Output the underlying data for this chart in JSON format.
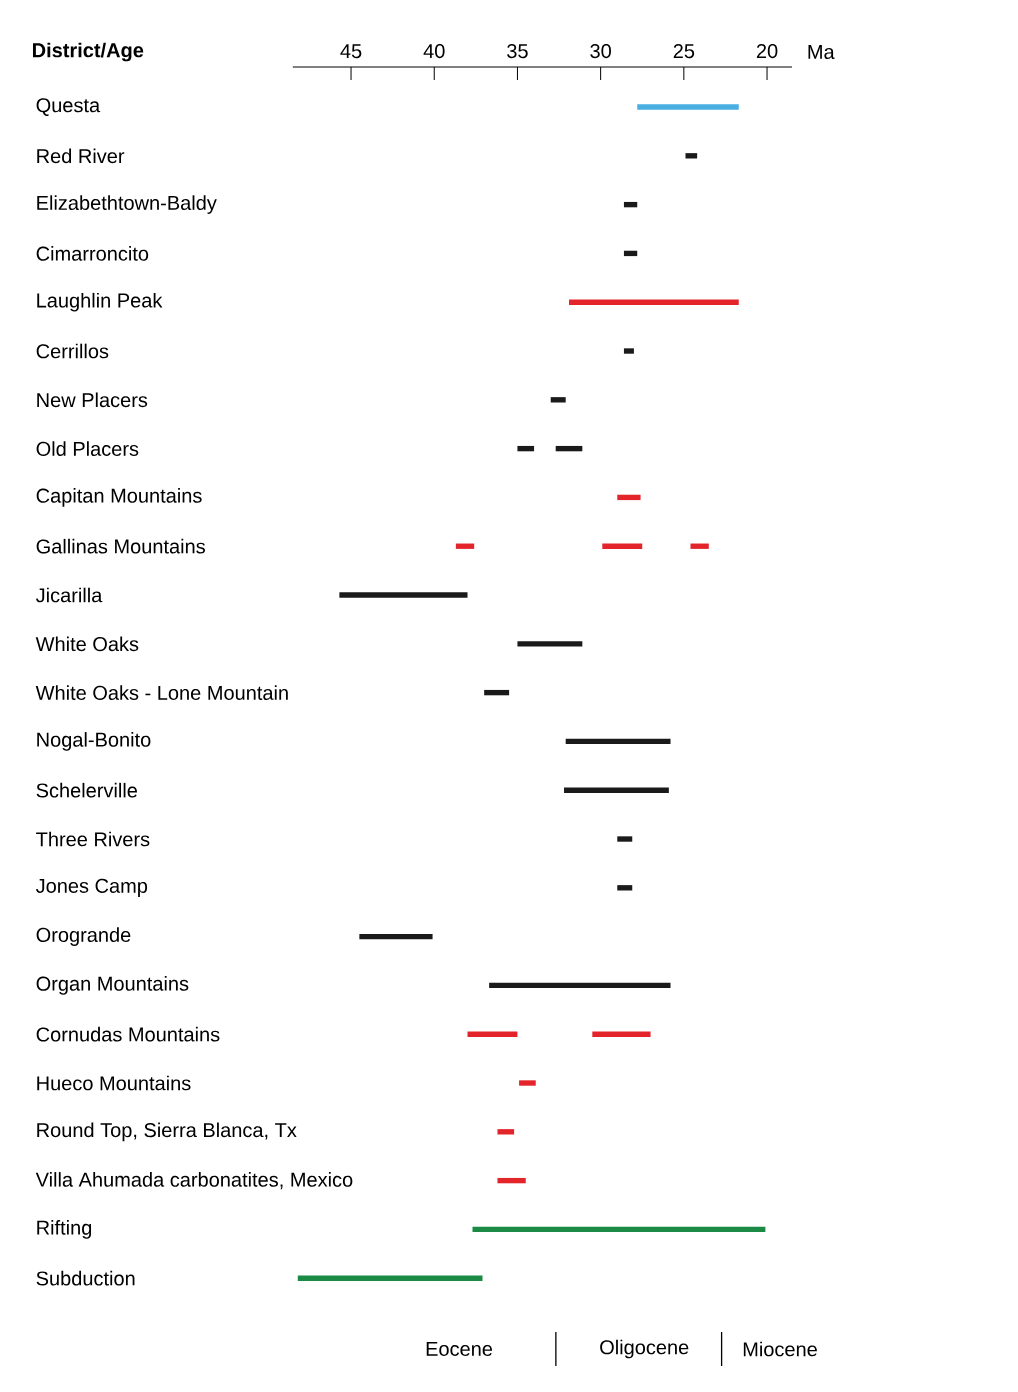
{
  "chart_data": {
    "type": "bar",
    "orientation": "horizontal",
    "ylabel": "District/Age",
    "xlabel": "Ma",
    "categories": [
      "Questa",
      "Red River",
      "Elizabethtown-Baldy",
      "Cimarroncito",
      "Laughlin Peak",
      "Cerrillos",
      "New Placers",
      "Old Placers",
      "Capitan Mountains",
      "Gallinas Mountains",
      "Jicarilla",
      "White Oaks",
      "White Oaks - Lone Mountain",
      "Nogal-Bonito",
      "Schelerville",
      "Three Rivers",
      "Jones Camp",
      "Orogrande",
      "Organ Mountains",
      "Cornudas Mountains",
      "Hueco Mountains",
      "Round Top, Sierra Blanca, Tx",
      "Villa Ahumada carbonatites, Mexico",
      "Rifting",
      "Subduction"
    ],
    "series": [
      {
        "base": [
          21.7,
          24.2,
          27.8,
          27.8,
          21.7,
          28.0,
          32.1,
          34.0,
          27.6,
          37.6,
          38.0,
          31.1,
          35.5,
          25.8,
          25.9,
          28.1,
          28.1,
          40.1,
          25.8,
          35.0,
          33.9,
          35.2,
          34.5,
          20.1,
          37.1
        ],
        "values": [
          6.1,
          0.7,
          0.8,
          0.8,
          10.2,
          0.6,
          0.9,
          1.0,
          1.4,
          1.1,
          7.7,
          3.9,
          1.5,
          6.3,
          6.3,
          0.9,
          0.9,
          4.4,
          10.9,
          3.0,
          1.0,
          1.0,
          1.7,
          17.6,
          11.1
        ],
        "colors": [
          "#4aaee0",
          "#1a1a1a",
          "#1a1a1a",
          "#1a1a1a",
          "#e3242b",
          "#1a1a1a",
          "#1a1a1a",
          "#1a1a1a",
          "#e3242b",
          "#e3242b",
          "#1a1a1a",
          "#1a1a1a",
          "#1a1a1a",
          "#1a1a1a",
          "#1a1a1a",
          "#1a1a1a",
          "#1a1a1a",
          "#1a1a1a",
          "#1a1a1a",
          "#e3242b",
          "#e3242b",
          "#e3242b",
          "#e3242b",
          "#1b8a45",
          "#1b8a45"
        ]
      },
      {
        "base": [
          null,
          null,
          null,
          null,
          null,
          null,
          null,
          31.1,
          null,
          27.5,
          null,
          null,
          null,
          null,
          null,
          null,
          null,
          null,
          null,
          27.0,
          null,
          null,
          null,
          null,
          null
        ],
        "values": [
          null,
          null,
          null,
          null,
          null,
          null,
          null,
          1.6,
          null,
          2.4,
          null,
          null,
          null,
          null,
          null,
          null,
          null,
          null,
          null,
          3.5,
          null,
          null,
          null,
          null,
          null
        ],
        "colors": [
          null,
          null,
          null,
          null,
          null,
          null,
          null,
          "#1a1a1a",
          null,
          "#e3242b",
          null,
          null,
          null,
          null,
          null,
          null,
          null,
          null,
          null,
          "#e3242b",
          null,
          null,
          null,
          null,
          null
        ]
      },
      {
        "base": [
          null,
          null,
          null,
          null,
          null,
          null,
          null,
          null,
          null,
          23.5,
          null,
          null,
          null,
          null,
          null,
          null,
          null,
          null,
          null,
          null,
          null,
          null,
          null,
          null,
          null
        ],
        "values": [
          null,
          null,
          null,
          null,
          null,
          null,
          null,
          null,
          null,
          1.1,
          null,
          null,
          null,
          null,
          null,
          null,
          null,
          null,
          null,
          null,
          null,
          null,
          null,
          null,
          null
        ],
        "colors": [
          null,
          null,
          null,
          null,
          null,
          null,
          null,
          null,
          null,
          "#e3242b",
          null,
          null,
          null,
          null,
          null,
          null,
          null,
          null,
          null,
          null,
          null,
          null,
          null,
          null,
          null
        ]
      }
    ],
    "xlim": [
      48.5,
      18.5
    ],
    "xticks": [
      45,
      40,
      35,
      30,
      25,
      20
    ],
    "annotations": [
      "Eocene",
      "Oligocene",
      "Miocene"
    ]
  }
}
